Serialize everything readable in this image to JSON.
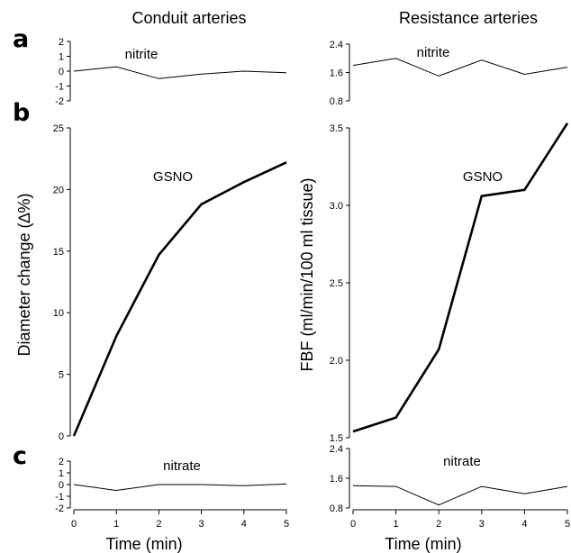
{
  "figure": {
    "column_titles": [
      "Conduit arteries",
      "Resistance arteries"
    ],
    "panel_letters": [
      "a",
      "b",
      "c"
    ],
    "y_labels": [
      "Diameter change (∆%)",
      "FBF (ml/min/100 ml tissue)"
    ],
    "x_labels": [
      "Time (min)",
      "Time (min)"
    ]
  },
  "chart_data": [
    {
      "id": "a-conduit",
      "type": "line",
      "panel": "a",
      "column": "Conduit arteries",
      "x": [
        0,
        1,
        2,
        3,
        4,
        5
      ],
      "xlim": [
        0,
        5
      ],
      "ylim": [
        -2,
        2
      ],
      "yticks": [
        2,
        1,
        0,
        -1,
        -2
      ],
      "series": [
        {
          "name": "nitrite",
          "values": [
            0,
            0.3,
            -0.5,
            -0.2,
            0,
            -0.1
          ]
        }
      ]
    },
    {
      "id": "a-resistance",
      "type": "line",
      "panel": "a",
      "column": "Resistance arteries",
      "x": [
        0,
        1,
        2,
        3,
        4,
        5
      ],
      "xlim": [
        0,
        5
      ],
      "ylim": [
        0.8,
        2.4
      ],
      "yticks": [
        2.4,
        1.6,
        0.8
      ],
      "series": [
        {
          "name": "nitrite",
          "values": [
            1.8,
            2.0,
            1.5,
            1.95,
            1.55,
            1.75
          ]
        }
      ]
    },
    {
      "id": "b-conduit",
      "type": "line",
      "panel": "b",
      "column": "Conduit arteries",
      "x": [
        0,
        1,
        2,
        3,
        4,
        5
      ],
      "xlim": [
        0,
        5
      ],
      "ylim": [
        0,
        25
      ],
      "yticks": [
        25,
        20,
        15,
        10,
        5,
        0
      ],
      "series": [
        {
          "name": "GSNO",
          "values": [
            0,
            8.1,
            14.7,
            18.8,
            20.6,
            22.2
          ]
        }
      ]
    },
    {
      "id": "b-resistance",
      "type": "line",
      "panel": "b",
      "column": "Resistance arteries",
      "x": [
        0,
        1,
        2,
        3,
        4,
        5
      ],
      "xlim": [
        0,
        5
      ],
      "ylim": [
        1.5,
        3.5
      ],
      "yticks": [
        3.5,
        3.0,
        2.5,
        2.0,
        1.5
      ],
      "series": [
        {
          "name": "GSNO",
          "values": [
            1.54,
            1.63,
            2.07,
            3.06,
            3.1,
            3.53
          ]
        }
      ]
    },
    {
      "id": "c-conduit",
      "type": "line",
      "panel": "c",
      "column": "Conduit arteries",
      "x": [
        0,
        1,
        2,
        3,
        4,
        5
      ],
      "xlim": [
        0,
        5
      ],
      "ylim": [
        -2,
        2
      ],
      "yticks": [
        2,
        1,
        0,
        -1,
        -2
      ],
      "xticks": [
        0,
        1,
        2,
        3,
        4,
        5
      ],
      "series": [
        {
          "name": "nitrate",
          "values": [
            0,
            -0.5,
            0,
            0,
            -0.1,
            0.05
          ]
        }
      ]
    },
    {
      "id": "c-resistance",
      "type": "line",
      "panel": "c",
      "column": "Resistance arteries",
      "x": [
        0,
        1,
        2,
        3,
        4,
        5
      ],
      "xlim": [
        0,
        5
      ],
      "ylim": [
        0.8,
        2.4
      ],
      "yticks": [
        2.4,
        1.6,
        0.8
      ],
      "xticks": [
        0,
        1,
        2,
        3,
        4,
        5
      ],
      "series": [
        {
          "name": "nitrate",
          "values": [
            1.4,
            1.38,
            0.88,
            1.38,
            1.18,
            1.38
          ]
        }
      ]
    }
  ]
}
